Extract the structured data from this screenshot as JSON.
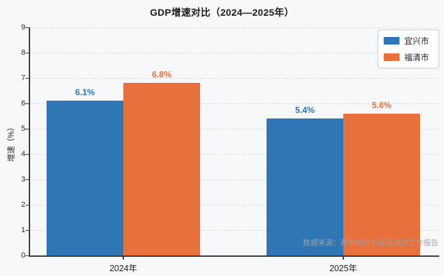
{
  "title": "GDP增速对比（2024—2025年）",
  "chart_data": {
    "type": "bar",
    "title": "GDP增速对比（2024—2025年）",
    "categories": [
      "2024年",
      "2025年"
    ],
    "series": [
      {
        "name": "宜兴市",
        "color": "#2e77b4",
        "values": [
          6.1,
          5.4
        ],
        "labels": [
          "6.1%",
          "5.4%"
        ]
      },
      {
        "name": "福清市",
        "color": "#e8703c",
        "values": [
          6.8,
          5.6
        ],
        "labels": [
          "6.8%",
          "5.6%"
        ]
      }
    ],
    "xlabel": "",
    "ylabel": "增速（%）",
    "ylim": [
      0,
      9
    ],
    "yticks": [
      0,
      1,
      2,
      3,
      4,
      5,
      6,
      7,
      8,
      9
    ],
    "grid": "horizontal-dashed",
    "legend_position": "upper-right",
    "source_note": "数据来源：两市统计公报及政府工作报告"
  },
  "legend": {
    "items": [
      {
        "label": "宜兴市",
        "color": "#2e77b4"
      },
      {
        "label": "福清市",
        "color": "#e8703c"
      }
    ]
  }
}
